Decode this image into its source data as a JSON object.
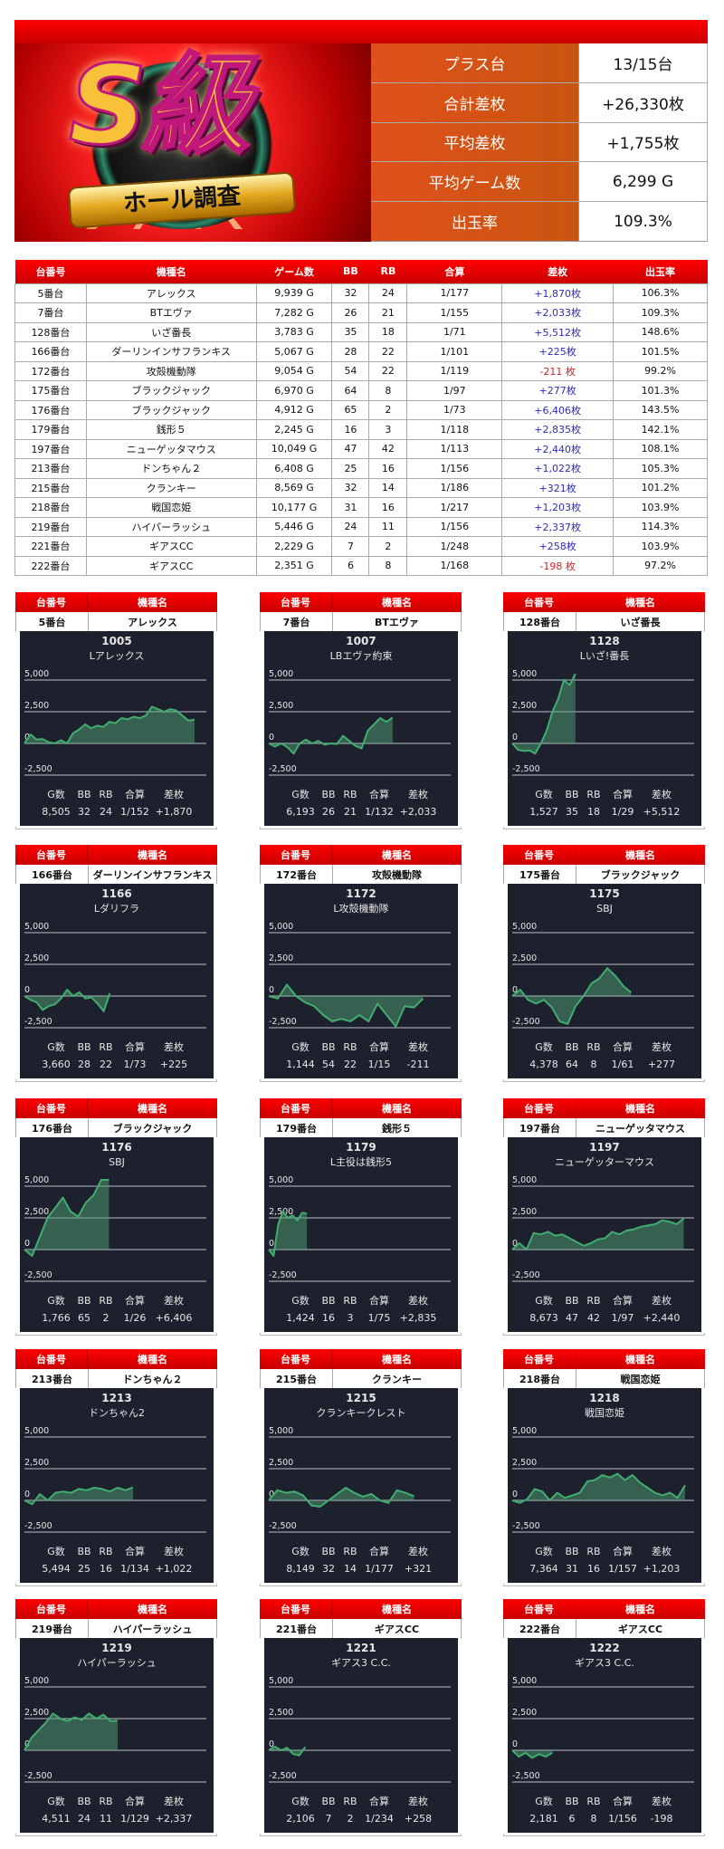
{
  "logo": {
    "main": "S級",
    "ribbon": "ホール調査"
  },
  "summary": [
    {
      "label": "プラス台",
      "value": "13/15台"
    },
    {
      "label": "合計差枚",
      "value": "+26,330枚"
    },
    {
      "label": "平均差枚",
      "value": "+1,755枚"
    },
    {
      "label": "平均ゲーム数",
      "value": "6,299 G"
    },
    {
      "label": "出玉率",
      "value": "109.3%"
    }
  ],
  "table": {
    "headers": [
      "台番号",
      "機種名",
      "ゲーム数",
      "BB",
      "RB",
      "合算",
      "差枚",
      "出玉率"
    ],
    "rows": [
      [
        "5番台",
        "アレックス",
        "9,939 G",
        "32",
        "24",
        "1/177",
        "+1,870枚",
        "106.3%"
      ],
      [
        "7番台",
        "BTエヴァ",
        "7,282 G",
        "26",
        "21",
        "1/155",
        "+2,033枚",
        "109.3%"
      ],
      [
        "128番台",
        "いざ番長",
        "3,783 G",
        "35",
        "18",
        "1/71",
        "+5,512枚",
        "148.6%"
      ],
      [
        "166番台",
        "ダーリンインサフランキス",
        "5,067 G",
        "28",
        "22",
        "1/101",
        "+225枚",
        "101.5%"
      ],
      [
        "172番台",
        "攻殻機動隊",
        "9,054 G",
        "54",
        "22",
        "1/119",
        "-211 枚",
        "99.2%"
      ],
      [
        "175番台",
        "ブラックジャック",
        "6,970 G",
        "64",
        "8",
        "1/97",
        "+277枚",
        "101.3%"
      ],
      [
        "176番台",
        "ブラックジャック",
        "4,912 G",
        "65",
        "2",
        "1/73",
        "+6,406枚",
        "143.5%"
      ],
      [
        "179番台",
        "銭形５",
        "2,245 G",
        "16",
        "3",
        "1/118",
        "+2,835枚",
        "142.1%"
      ],
      [
        "197番台",
        "ニューゲッタマウス",
        "10,049 G",
        "47",
        "42",
        "1/113",
        "+2,440枚",
        "108.1%"
      ],
      [
        "213番台",
        "ドンちゃん２",
        "6,408 G",
        "25",
        "16",
        "1/156",
        "+1,022枚",
        "105.3%"
      ],
      [
        "215番台",
        "クランキー",
        "8,569 G",
        "32",
        "14",
        "1/186",
        "+321枚",
        "101.2%"
      ],
      [
        "218番台",
        "戦国恋姫",
        "10,177 G",
        "31",
        "16",
        "1/217",
        "+1,203枚",
        "103.9%"
      ],
      [
        "219番台",
        "ハイパーラッシュ",
        "5,446 G",
        "24",
        "11",
        "1/156",
        "+2,337枚",
        "114.3%"
      ],
      [
        "221番台",
        "ギアスCC",
        "2,229 G",
        "7",
        "2",
        "1/248",
        "+258枚",
        "103.9%"
      ],
      [
        "222番台",
        "ギアスCC",
        "2,351 G",
        "6",
        "8",
        "1/168",
        "-198 枚",
        "97.2%"
      ]
    ]
  },
  "card_labels": {
    "no": "台番号",
    "model": "機種名",
    "stats": [
      "G数",
      "BB",
      "RB",
      "合算",
      "差枚"
    ]
  },
  "colors": {
    "header_red": "#e00000",
    "summary_orange": "#d4521a",
    "chart_bg": "#1d212d",
    "line_green": "#3fae6e",
    "plus_blue": "#2b2bc0",
    "minus_red": "#d42020"
  },
  "chart_data": [
    {
      "type": "area",
      "no": "5番台",
      "model": "アレックス",
      "id": "1005",
      "name": "Lアレックス",
      "stats": [
        "8,505",
        "32",
        "24",
        "1/152",
        "+1,870"
      ],
      "xlim": [
        0,
        9100
      ],
      "ylim": [
        -2500,
        5500
      ],
      "yticks": [
        "5,000",
        "2,500",
        "0",
        "-2,500"
      ],
      "values": [
        0,
        700,
        300,
        350,
        100,
        0,
        250,
        0,
        800,
        1100,
        1500,
        1200,
        1400,
        1300,
        1700,
        1600,
        2000,
        1900,
        2100,
        2000,
        2200,
        2900,
        2700,
        2500,
        2700,
        2600,
        2200,
        1800,
        1870
      ]
    },
    {
      "type": "area",
      "no": "7番台",
      "model": "BTエヴァ",
      "id": "1007",
      "name": "LBエヴァ約束",
      "stats": [
        "6,193",
        "26",
        "21",
        "1/132",
        "+2,033"
      ],
      "xlim": [
        0,
        9100
      ],
      "ylim": [
        -2500,
        5500
      ],
      "yticks": [
        "5,000",
        "2,500",
        "0",
        "-2,500"
      ],
      "values": [
        0,
        -250,
        0,
        -300,
        -800,
        0,
        300,
        0,
        200,
        -100,
        0,
        -50,
        600,
        200,
        -200,
        -400,
        1000,
        1500,
        2000,
        1700,
        2033
      ]
    },
    {
      "type": "area",
      "no": "128番台",
      "model": "いざ番長",
      "id": "1128",
      "name": "Lいざ!番長",
      "stats": [
        "1,527",
        "35",
        "18",
        "1/29",
        "+5,512"
      ],
      "xlim": [
        0,
        4400
      ],
      "ylim": [
        -2500,
        5500
      ],
      "yticks": [
        "5,000",
        "2,500",
        "0",
        "-2,500"
      ],
      "values": [
        0,
        -500,
        -600,
        -550,
        -800,
        0,
        1000,
        2500,
        3500,
        5000,
        4600,
        5512
      ]
    },
    {
      "type": "area",
      "no": "166番台",
      "model": "ダーリンインサフランキス",
      "id": "1166",
      "name": "Lダリフラ",
      "stats": [
        "3,660",
        "28",
        "22",
        "1/73",
        "+225"
      ],
      "xlim": [
        0,
        7800
      ],
      "ylim": [
        -2500,
        5500
      ],
      "yticks": [
        "5,000",
        "2,500",
        "0",
        "-2,500"
      ],
      "values": [
        0,
        -300,
        -500,
        -1100,
        -800,
        -650,
        -200,
        500,
        0,
        300,
        -200,
        -100,
        -600,
        -1200,
        225
      ]
    },
    {
      "type": "area",
      "no": "172番台",
      "model": "攻殻機動隊",
      "id": "1172",
      "name": "L攻殻機動隊",
      "stats": [
        "1,144",
        "54",
        "22",
        "1/15",
        "-211"
      ],
      "xlim": [
        0,
        1350
      ],
      "ylim": [
        -2500,
        5500
      ],
      "yticks": [
        "5,000",
        "2,500",
        "0",
        "-2,500"
      ],
      "values": [
        0,
        -200,
        900,
        0,
        -500,
        -800,
        -1500,
        -2000,
        -1800,
        -2000,
        -1500,
        -2000,
        -600,
        -1500,
        -2400,
        -800,
        -900,
        -211
      ]
    },
    {
      "type": "area",
      "no": "175番台",
      "model": "ブラックジャック",
      "id": "1175",
      "name": "SBJ",
      "stats": [
        "4,378",
        "64",
        "8",
        "1/61",
        "+277"
      ],
      "xlim": [
        0,
        6700
      ],
      "ylim": [
        -2500,
        5500
      ],
      "yticks": [
        "5,000",
        "2,500",
        "0",
        "-2,500"
      ],
      "values": [
        0,
        500,
        -300,
        -600,
        -300,
        -900,
        -2000,
        -2200,
        -800,
        0,
        1000,
        1400,
        2200,
        1600,
        800,
        277
      ]
    },
    {
      "type": "area",
      "no": "176番台",
      "model": "ブラックジャック",
      "id": "1176",
      "name": "SBJ",
      "stats": [
        "1,766",
        "65",
        "2",
        "1/26",
        "+6,406"
      ],
      "xlim": [
        0,
        3800
      ],
      "ylim": [
        -2500,
        5500
      ],
      "yticks": [
        "5,000",
        "2,500",
        "0",
        "-2,500"
      ],
      "values": [
        0,
        -500,
        1000,
        2500,
        3300,
        4100,
        3000,
        2600,
        3700,
        4300,
        5500,
        6406
      ]
    },
    {
      "type": "area",
      "no": "179番台",
      "model": "銭形５",
      "id": "1179",
      "name": "L主役は銭形5",
      "stats": [
        "1,424",
        "16",
        "3",
        "1/75",
        "+2,835"
      ],
      "xlim": [
        0,
        6800
      ],
      "ylim": [
        -2500,
        5500
      ],
      "yticks": [
        "5,000",
        "2,500",
        "0",
        "-2,500"
      ],
      "values": [
        0,
        -500,
        2000,
        3000,
        2500,
        2700,
        2300,
        2900,
        2835
      ]
    },
    {
      "type": "area",
      "no": "197番台",
      "model": "ニューゲッタマウス",
      "id": "1197",
      "name": "ニューゲッターマウス",
      "stats": [
        "8,673",
        "47",
        "42",
        "1/97",
        "+2,440"
      ],
      "xlim": [
        0,
        9200
      ],
      "ylim": [
        -2500,
        5500
      ],
      "yticks": [
        "5,000",
        "2,500",
        "0",
        "-2,500"
      ],
      "values": [
        0,
        500,
        0,
        1300,
        1200,
        1400,
        1100,
        1200,
        900,
        600,
        300,
        500,
        800,
        900,
        1400,
        1200,
        1500,
        1600,
        1800,
        1900,
        2000,
        2300,
        2200,
        2000,
        2440
      ]
    },
    {
      "type": "area",
      "no": "213番台",
      "model": "ドンちゃん２",
      "id": "1213",
      "name": "ドンちゃん2",
      "stats": [
        "5,494",
        "25",
        "16",
        "1/134",
        "+1,022"
      ],
      "xlim": [
        0,
        9200
      ],
      "ylim": [
        -2500,
        5500
      ],
      "yticks": [
        "5,000",
        "2,500",
        "0",
        "-2,500"
      ],
      "values": [
        0,
        -300,
        500,
        0,
        600,
        700,
        600,
        900,
        800,
        1000,
        900,
        700,
        1000,
        800,
        1022
      ]
    },
    {
      "type": "area",
      "no": "215番台",
      "model": "クランキー",
      "id": "1215",
      "name": "クランキークレスト",
      "stats": [
        "8,149",
        "32",
        "14",
        "1/177",
        "+321"
      ],
      "xlim": [
        0,
        10200
      ],
      "ylim": [
        -2500,
        5500
      ],
      "yticks": [
        "5,000",
        "2,500",
        "0",
        "-2,500"
      ],
      "values": [
        0,
        800,
        600,
        700,
        400,
        -400,
        -500,
        0,
        500,
        1000,
        600,
        300,
        500,
        0,
        -200,
        800,
        600,
        321
      ]
    },
    {
      "type": "area",
      "no": "218番台",
      "model": "戦国恋姫",
      "id": "1218",
      "name": "戦国恋姫",
      "stats": [
        "7,364",
        "31",
        "16",
        "1/157",
        "+1,203"
      ],
      "xlim": [
        0,
        7750
      ],
      "ylim": [
        -2500,
        5500
      ],
      "yticks": [
        "5,000",
        "2,500",
        "0",
        "-2,500"
      ],
      "values": [
        0,
        -200,
        100,
        900,
        700,
        0,
        600,
        200,
        400,
        600,
        1500,
        1600,
        2000,
        1800,
        2100,
        1600,
        2000,
        1400,
        1000,
        600,
        400,
        600,
        200,
        1203
      ]
    },
    {
      "type": "area",
      "no": "219番台",
      "model": "ハイパーラッシュ",
      "id": "1219",
      "name": "ハイパーラッシュ",
      "stats": [
        "4,511",
        "24",
        "11",
        "1/129",
        "+2,337"
      ],
      "xlim": [
        0,
        8800
      ],
      "ylim": [
        -2500,
        5500
      ],
      "yticks": [
        "5,000",
        "2,500",
        "0",
        "-2,500"
      ],
      "values": [
        0,
        1000,
        1600,
        2200,
        2900,
        2500,
        2300,
        2600,
        2400,
        2900,
        2500,
        2800,
        2300,
        2337
      ]
    },
    {
      "type": "area",
      "no": "221番台",
      "model": "ギアスCC",
      "id": "1221",
      "name": "ギアス3 C.C.",
      "stats": [
        "2,106",
        "7",
        "2",
        "1/234",
        "+258"
      ],
      "xlim": [
        0,
        10500
      ],
      "ylim": [
        -2500,
        5500
      ],
      "yticks": [
        "5,000",
        "2,500",
        "0",
        "-2,500"
      ],
      "values": [
        0,
        300,
        0,
        200,
        -300,
        -400,
        258
      ]
    },
    {
      "type": "area",
      "no": "222番台",
      "model": "ギアスCC",
      "id": "1222",
      "name": "ギアス3 C.C.",
      "stats": [
        "2,181",
        "6",
        "8",
        "1/156",
        "-198"
      ],
      "xlim": [
        0,
        9900
      ],
      "ylim": [
        -2500,
        5500
      ],
      "yticks": [
        "5,000",
        "2,500",
        "0",
        "-2,500"
      ],
      "values": [
        0,
        -500,
        -200,
        -600,
        -300,
        -500,
        -198
      ]
    }
  ]
}
